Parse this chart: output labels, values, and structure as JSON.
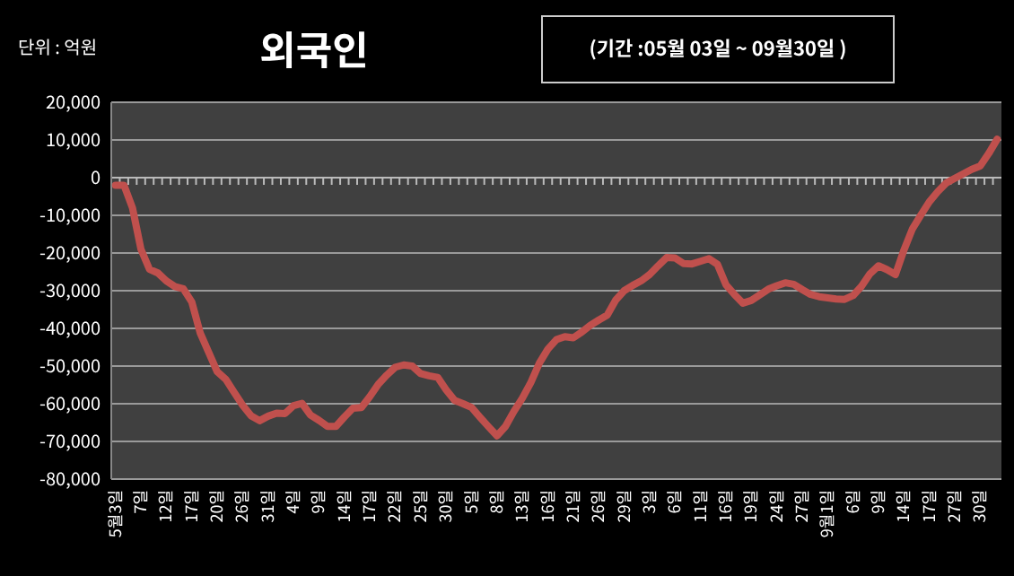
{
  "chart_data": {
    "type": "line",
    "title": "외국인",
    "subtitle": "(기간 :05월 03일 ~ 09월30일 )",
    "ylabel": "단위 : 억원",
    "categories": [
      "5월3일",
      null,
      null,
      "7일",
      null,
      null,
      "12일",
      null,
      null,
      "17일",
      null,
      null,
      "20일",
      null,
      null,
      "26일",
      null,
      null,
      "31일",
      null,
      null,
      "4일",
      null,
      null,
      "9일",
      null,
      null,
      "14일",
      null,
      null,
      "17일",
      null,
      null,
      "22일",
      null,
      null,
      "25일",
      null,
      null,
      "30일",
      null,
      null,
      "5일",
      null,
      null,
      "8일",
      null,
      null,
      "13일",
      null,
      null,
      "16일",
      null,
      null,
      "21일",
      null,
      null,
      "26일",
      null,
      null,
      "29일",
      null,
      null,
      "3일",
      null,
      null,
      "6일",
      null,
      null,
      "11일",
      null,
      null,
      "16일",
      null,
      null,
      "19일",
      null,
      null,
      "24일",
      null,
      null,
      "27일",
      null,
      null,
      "9월1일",
      null,
      null,
      "6일",
      null,
      null,
      "9일",
      null,
      null,
      "14일",
      null,
      null,
      "17일",
      null,
      null,
      "27일",
      null,
      null,
      "30일",
      null,
      null
    ],
    "series": [
      {
        "color": "#c0504d",
        "values": [
          -2000,
          -2000,
          -8000,
          -19000,
          -24300,
          -25300,
          -27400,
          -28900,
          -29500,
          -33000,
          -41300,
          -46400,
          -51500,
          -53500,
          -57000,
          -60400,
          -63200,
          -64500,
          -63300,
          -62500,
          -62600,
          -60500,
          -59900,
          -63000,
          -64400,
          -66000,
          -66000,
          -63500,
          -61200,
          -61000,
          -58100,
          -54800,
          -52400,
          -50300,
          -49700,
          -50000,
          -52000,
          -52600,
          -53000,
          -56300,
          -59100,
          -60000,
          -61000,
          -63600,
          -66100,
          -68500,
          -66000,
          -62000,
          -58500,
          -54300,
          -49200,
          -45500,
          -43000,
          -42200,
          -42500,
          -41000,
          -39200,
          -37800,
          -36500,
          -32500,
          -30000,
          -28600,
          -27400,
          -25700,
          -23400,
          -21200,
          -21300,
          -22800,
          -22900,
          -22200,
          -21500,
          -23000,
          -28400,
          -31000,
          -33300,
          -32600,
          -31100,
          -29600,
          -28700,
          -27900,
          -28300,
          -29700,
          -31000,
          -31600,
          -31900,
          -32200,
          -32300,
          -31300,
          -28800,
          -25500,
          -23400,
          -24400,
          -25700,
          -19200,
          -13600,
          -9900,
          -6400,
          -3700,
          -1400,
          -200,
          1000,
          2200,
          3100,
          6400,
          10200
        ]
      }
    ],
    "ylim": [
      -80000,
      20000
    ],
    "yticks": [
      {
        "value": -80000,
        "label": "-80,000"
      },
      {
        "value": -70000,
        "label": "-70,000"
      },
      {
        "value": -60000,
        "label": "-60,000"
      },
      {
        "value": -50000,
        "label": "-50,000"
      },
      {
        "value": -40000,
        "label": "-40,000"
      },
      {
        "value": -30000,
        "label": "-30,000"
      },
      {
        "value": -20000,
        "label": "-20,000"
      },
      {
        "value": -10000,
        "label": "-10,000"
      },
      {
        "value": 0,
        "label": "0"
      },
      {
        "value": 10000,
        "label": "10,000"
      },
      {
        "value": 20000,
        "label": "20,000"
      }
    ],
    "grid": "y",
    "marker": "none",
    "line_style": "solid"
  }
}
